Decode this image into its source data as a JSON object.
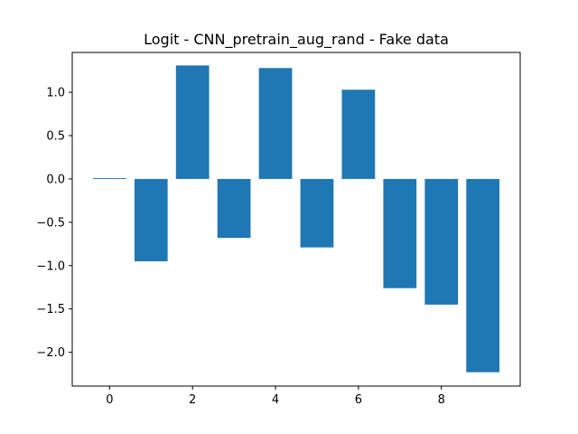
{
  "chart_data": {
    "type": "bar",
    "title": "Logit - CNN_pretrain_aug_rand - Fake data",
    "xlabel": "",
    "ylabel": "",
    "categories": [
      0,
      1,
      2,
      3,
      4,
      5,
      6,
      7,
      8,
      9
    ],
    "values": [
      0.01,
      -0.95,
      1.31,
      -0.68,
      1.28,
      -0.79,
      1.03,
      -1.26,
      -1.45,
      -2.23
    ],
    "xlim": [
      -0.9,
      9.9
    ],
    "ylim": [
      -2.39,
      1.46
    ],
    "x_ticks": [
      0,
      2,
      4,
      6,
      8
    ],
    "x_tick_labels": [
      "0",
      "2",
      "4",
      "6",
      "8"
    ],
    "y_ticks": [
      1.0,
      0.5,
      0.0,
      -0.5,
      -1.0,
      -1.5,
      -2.0
    ],
    "y_tick_labels": [
      "1.0",
      "0.5",
      "0.0",
      "−0.5",
      "−1.0",
      "−1.5",
      "−2.0"
    ],
    "bar_color": "#1f77b4",
    "grid": false,
    "legend": "none"
  }
}
